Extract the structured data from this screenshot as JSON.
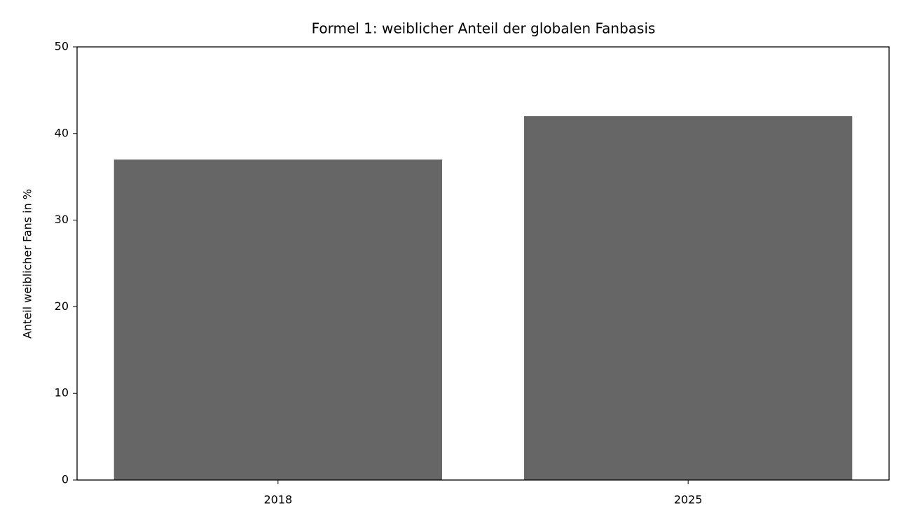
{
  "chart_data": {
    "type": "bar",
    "title": "Formel 1: weiblicher Anteil der globalen Fanbasis",
    "ylabel": "Anteil weiblicher Fans in %",
    "categories": [
      "2018",
      "2025"
    ],
    "values": [
      37,
      42
    ],
    "color": "#666666",
    "ylim": [
      0,
      50
    ],
    "yticks": [
      0,
      10,
      20,
      30,
      40,
      50
    ],
    "grid": false
  }
}
